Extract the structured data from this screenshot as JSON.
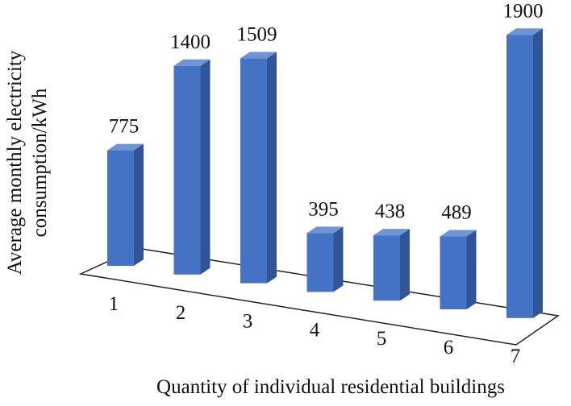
{
  "chart_data": {
    "type": "bar3d",
    "x_label": "Quantity of individual residential buildings",
    "y_label": "Average monthly electricity consumption/kWh",
    "categories": [
      "1",
      "2",
      "3",
      "4",
      "5",
      "6",
      "7"
    ],
    "values": [
      775,
      1400,
      1509,
      395,
      438,
      489,
      1900
    ],
    "color": "#4472c4"
  }
}
